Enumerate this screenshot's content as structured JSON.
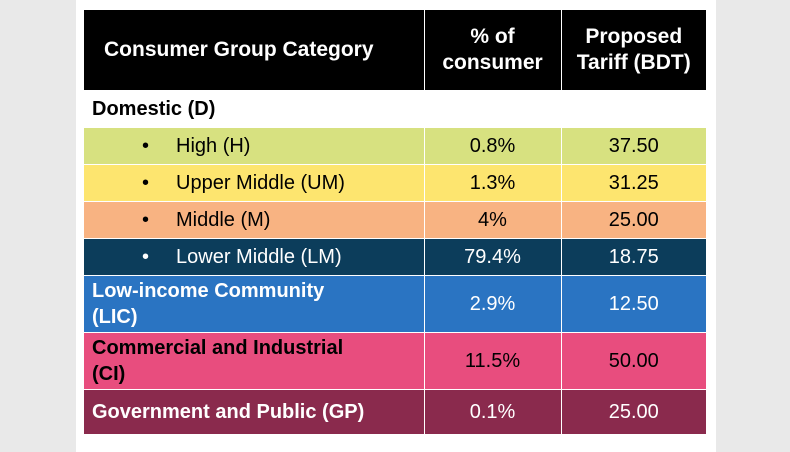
{
  "header": {
    "col1": "Consumer Group Category",
    "col2_line1": "% of",
    "col2_line2": "consumer",
    "col3_line1": "Proposed",
    "col3_line2": "Tariff (BDT)"
  },
  "domestic_label": "Domestic (D)",
  "bullet": "•",
  "rows": [
    {
      "category": "High (H)",
      "percent": "0.8%",
      "tariff": "37.50",
      "color": "#d7e180"
    },
    {
      "category": "Upper Middle (UM)",
      "percent": "1.3%",
      "tariff": "31.25",
      "color": "#fde56f"
    },
    {
      "category": "Middle (M)",
      "percent": "4%",
      "tariff": "25.00",
      "color": "#f8b382"
    },
    {
      "category": "Lower Middle (LM)",
      "percent": "79.4%",
      "tariff": "18.75",
      "color": "#0c3d5b"
    },
    {
      "category_line1": "Low-income Community",
      "category_line2": "(LIC)",
      "percent": "2.9%",
      "tariff": "12.50",
      "color": "#2a74c2"
    },
    {
      "category_line1": "Commercial and Industrial",
      "category_line2": "(CI)",
      "percent": "11.5%",
      "tariff": "50.00",
      "color": "#e84d7e"
    },
    {
      "category": "Government and Public (GP)",
      "percent": "0.1%",
      "tariff": "25.00",
      "color": "#8a2a4d"
    }
  ]
}
